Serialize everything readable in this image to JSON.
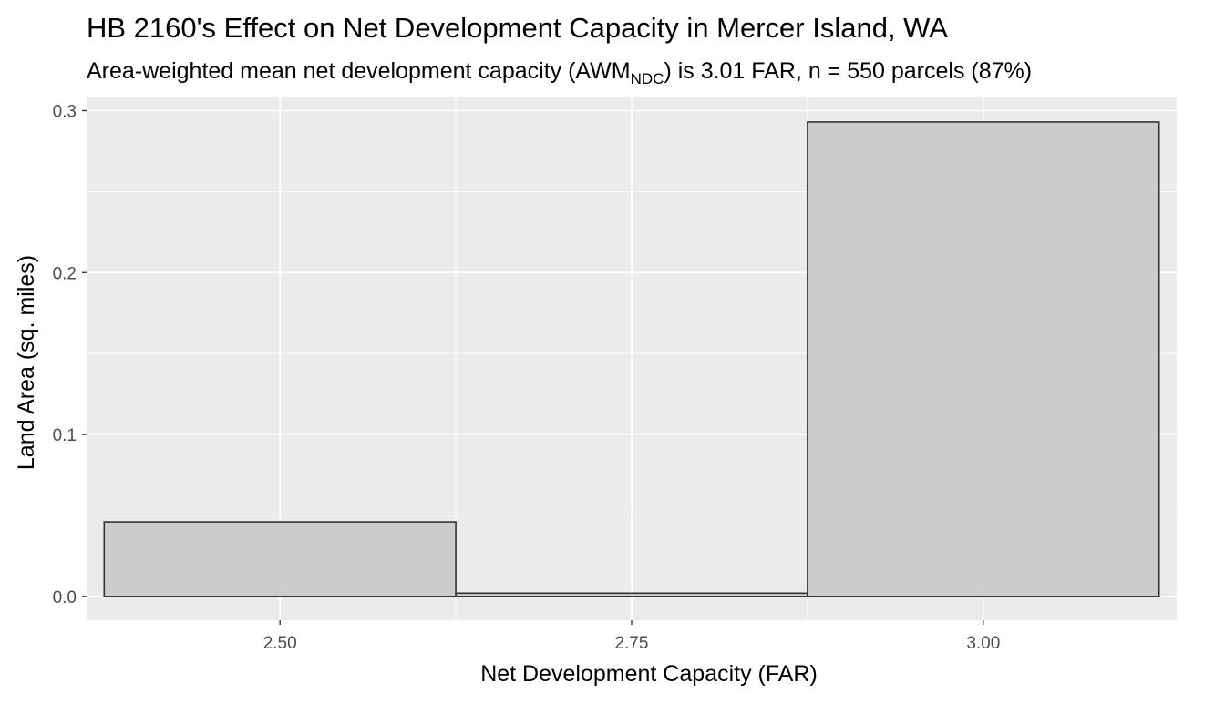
{
  "chart_data": {
    "type": "bar",
    "title": "HB 2160's Effect on Net Development Capacity in Mercer Island, WA",
    "subtitle": {
      "prefix": "Area-weighted mean net development capacity (AWM",
      "subscript": "NDC",
      "suffix": ") is 3.01 FAR, n = 550 parcels (87%)"
    },
    "xlabel": "Net Development Capacity (FAR)",
    "ylabel": "Land Area (sq. miles)",
    "xlim": [
      2.3625,
      3.1375
    ],
    "ylim": [
      -0.0147,
      0.3087
    ],
    "x_ticks": [
      2.5,
      2.75,
      3.0
    ],
    "x_tick_labels": [
      "2.50",
      "2.75",
      "3.00"
    ],
    "y_ticks": [
      0.0,
      0.1,
      0.2,
      0.3
    ],
    "y_tick_labels": [
      "0.0",
      "0.1",
      "0.2",
      "0.3"
    ],
    "bin_width": 0.25,
    "bins": [
      {
        "center": 2.5,
        "value": 0.046
      },
      {
        "center": 2.75,
        "value": 0.002
      },
      {
        "center": 3.0,
        "value": 0.293
      }
    ],
    "colors": {
      "panel_background": "#ebebeb",
      "grid": "#ffffff",
      "bar_fill": "#cccccc",
      "bar_outline": "#333333",
      "tick": "#333333"
    },
    "grid": true,
    "legend": "none"
  }
}
